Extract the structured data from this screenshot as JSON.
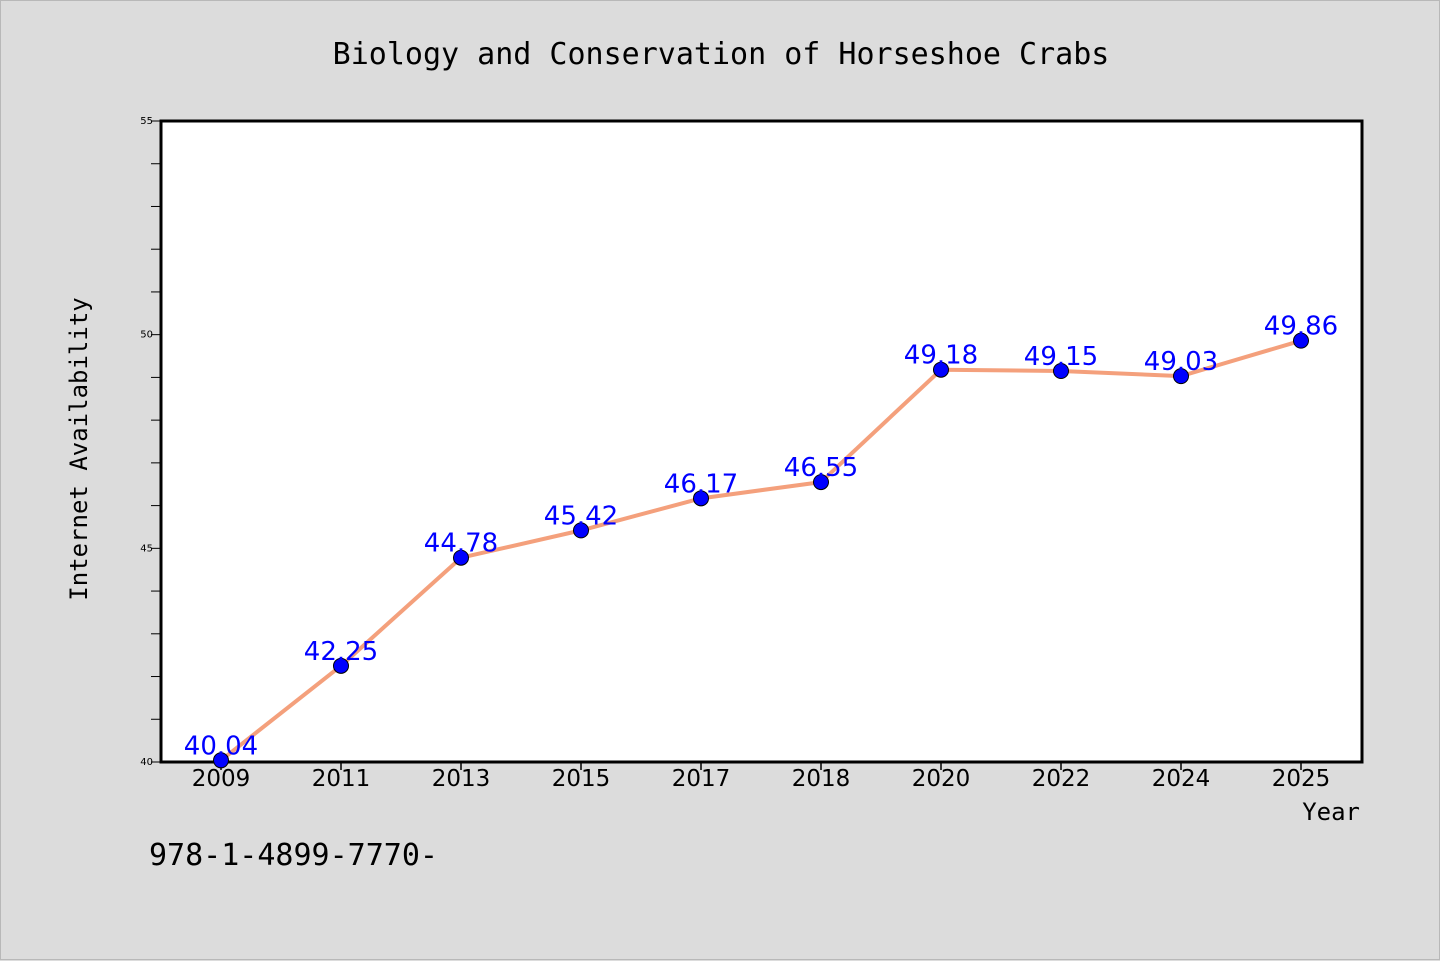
{
  "chart_data": {
    "type": "line",
    "title": "Biology and Conservation of Horseshoe Crabs",
    "xlabel": "Year",
    "ylabel": "Internet Availability",
    "categories": [
      "2009",
      "2011",
      "2013",
      "2015",
      "2017",
      "2018",
      "2020",
      "2022",
      "2024",
      "2025"
    ],
    "series": [
      {
        "values": [
          40.04,
          42.25,
          44.78,
          45.42,
          46.17,
          46.55,
          49.18,
          49.15,
          49.03,
          49.86
        ],
        "labels": [
          "40.04",
          "42.25",
          "44.78",
          "45.42",
          "46.17",
          "46.55",
          "49.18",
          "49.15",
          "49.03",
          "49.86"
        ],
        "line_color": "#f4a07c",
        "marker_color": "#0000ff"
      }
    ],
    "ylim": [
      40,
      55
    ],
    "yticks": [
      "40",
      "45",
      "50",
      "55"
    ],
    "grid": false,
    "legend": "none"
  },
  "footnote": "978-1-4899-7770-"
}
